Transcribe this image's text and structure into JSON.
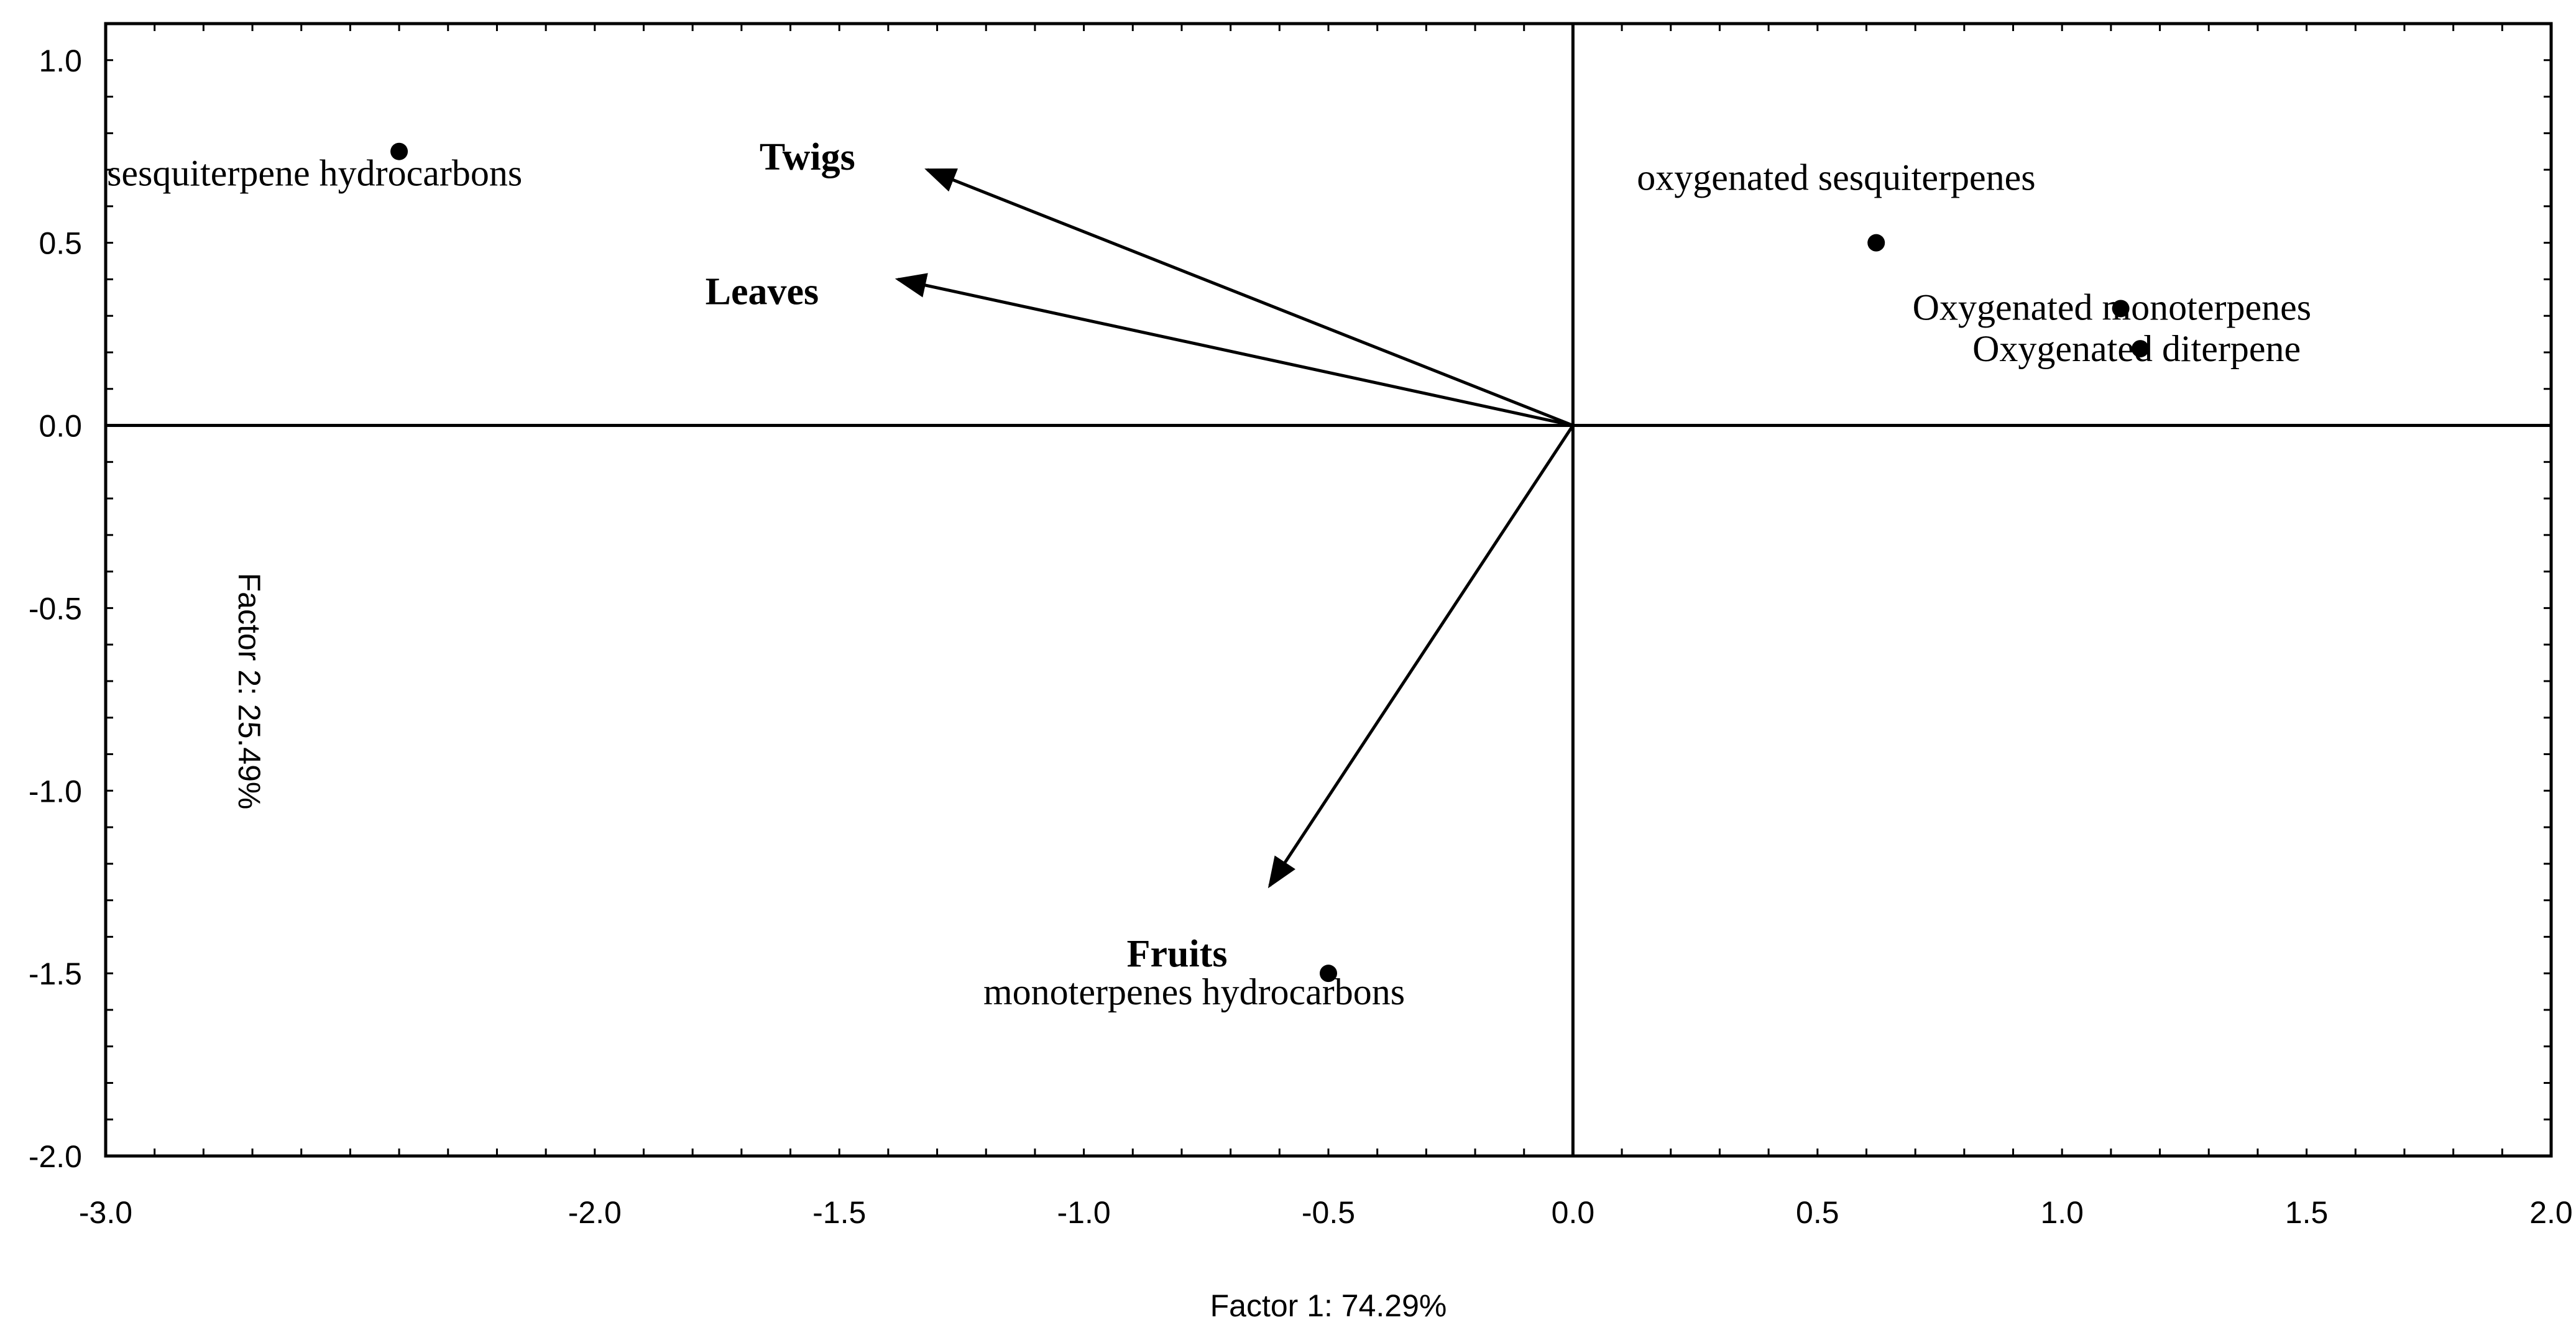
{
  "chart_data": {
    "type": "biplot",
    "xlabel": "Factor 1: 74.29%",
    "ylabel": "Factor 2: 25.49%",
    "xlim": [
      -3.0,
      2.0
    ],
    "ylim": [
      -2.0,
      1.1
    ],
    "x_ticks": [
      -3.0,
      -2.0,
      -1.5,
      -1.0,
      -0.5,
      0.0,
      0.5,
      1.0,
      1.5,
      2.0
    ],
    "x_tick_labels": [
      "-3.0",
      "-2.0",
      "-1.5",
      "-1.0",
      "-0.5",
      "0.0",
      "0.5",
      "1.0",
      "1.5",
      "2.0"
    ],
    "y_ticks": [
      1.0,
      0.5,
      0.0,
      -0.5,
      -1.0,
      -1.5,
      -2.0
    ],
    "y_tick_labels": [
      "1.0",
      "0.5",
      "0.0",
      "-0.5",
      "-1.0",
      "-1.5",
      "-2.0"
    ],
    "points": [
      {
        "label": "sesquiterpene hydrocarbons",
        "x": -2.4,
        "y": 0.75
      },
      {
        "label": "oxygenated sesquiterpenes",
        "x": 0.62,
        "y": 0.5
      },
      {
        "label": "Oxygenated monoterpenes",
        "x": 1.12,
        "y": 0.32
      },
      {
        "label": "Oxygenated diterpene",
        "x": 1.16,
        "y": 0.21
      },
      {
        "label": "monoterpenes hydrocarbons",
        "x": -0.5,
        "y": -1.5
      }
    ],
    "vectors": [
      {
        "label": "Twigs",
        "x": -1.32,
        "y": 0.7
      },
      {
        "label": "Leaves",
        "x": -1.38,
        "y": 0.4
      },
      {
        "label": "Fruits",
        "x": -0.62,
        "y": -1.26
      }
    ]
  }
}
